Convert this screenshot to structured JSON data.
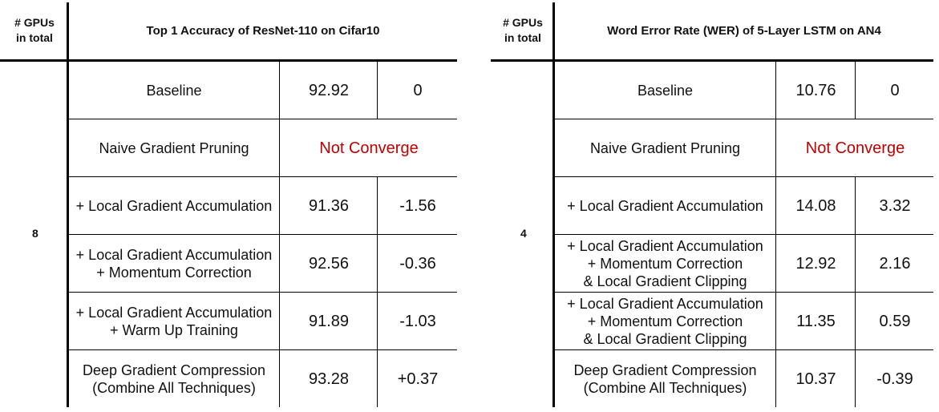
{
  "tables": [
    {
      "gpus_header": [
        "# GPUs",
        "in total"
      ],
      "title": "Top 1 Accuracy of ResNet-110 on Cifar10",
      "gpus_value": "8",
      "rows": [
        {
          "method": [
            "Baseline"
          ],
          "value": "92.92",
          "delta": "0"
        },
        {
          "method": [
            "Naive Gradient Pruning"
          ],
          "merged": "Not Converge"
        },
        {
          "method": [
            "+ Local Gradient Accumulation"
          ],
          "value": "91.36",
          "delta": "-1.56"
        },
        {
          "method": [
            "+ Local Gradient Accumulation",
            "+ Momentum Correction"
          ],
          "value": "92.56",
          "delta": "-0.36"
        },
        {
          "method": [
            "+ Local Gradient Accumulation",
            "+ Warm Up Training"
          ],
          "value": "91.89",
          "delta": "-1.03"
        },
        {
          "method": [
            "Deep Gradient Compression",
            "(Combine All Techniques)"
          ],
          "value": "93.28",
          "delta": "+0.37"
        }
      ]
    },
    {
      "gpus_header": [
        "# GPUs",
        "in total"
      ],
      "title": "Word Error Rate (WER) of 5-Layer LSTM on AN4",
      "gpus_value": "4",
      "rows": [
        {
          "method": [
            "Baseline"
          ],
          "value": "10.76",
          "delta": "0"
        },
        {
          "method": [
            "Naive Gradient Pruning"
          ],
          "merged": "Not Converge"
        },
        {
          "method": [
            "+ Local Gradient Accumulation"
          ],
          "value": "14.08",
          "delta": "3.32"
        },
        {
          "method": [
            "+ Local Gradient Accumulation",
            "+ Momentum Correction",
            "& Local Gradient Clipping"
          ],
          "value": "12.92",
          "delta": "2.16"
        },
        {
          "method": [
            "+ Local Gradient Accumulation",
            "+ Momentum Correction",
            "& Local Gradient Clipping"
          ],
          "value": "11.35",
          "delta": "0.59"
        },
        {
          "method": [
            "Deep Gradient Compression",
            "(Combine All Techniques)"
          ],
          "value": "10.37",
          "delta": "-0.39"
        }
      ]
    }
  ],
  "colors": {
    "not_converge": "#c00000"
  }
}
